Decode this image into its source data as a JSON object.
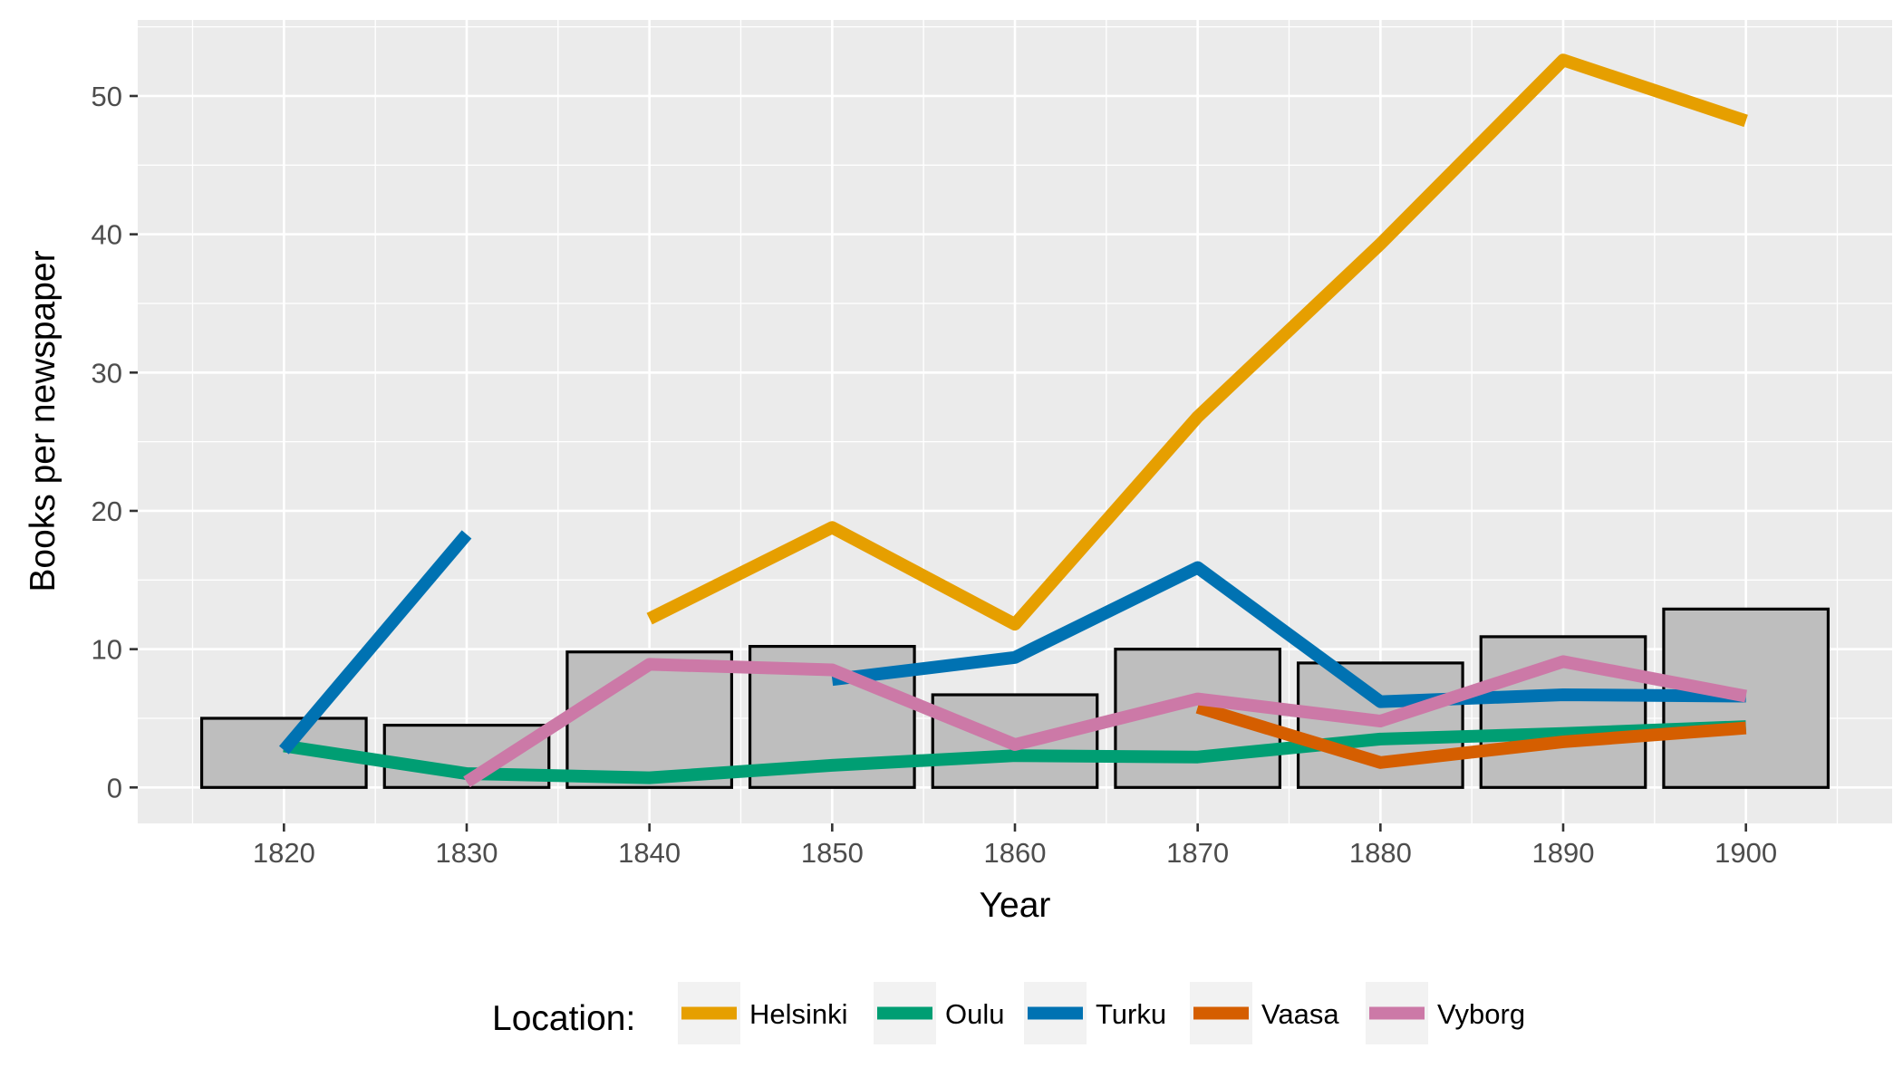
{
  "chart_data": {
    "type": "line",
    "title": "",
    "xlabel": "Year",
    "ylabel": "Books per newspaper",
    "xlim": [
      1812,
      1908
    ],
    "ylim": [
      -2.6,
      55.5
    ],
    "x_ticks": [
      "1820",
      "1830",
      "1840",
      "1850",
      "1860",
      "1870",
      "1880",
      "1890",
      "1900"
    ],
    "y_ticks": [
      "0",
      "10",
      "20",
      "30",
      "40",
      "50"
    ],
    "grid": true,
    "legend": {
      "title": "Location:",
      "position": "bottom"
    },
    "bars": {
      "x": [
        1820,
        1830,
        1840,
        1850,
        1860,
        1870,
        1880,
        1890,
        1900
      ],
      "values": [
        5.0,
        4.5,
        9.8,
        10.2,
        6.7,
        10.0,
        9.0,
        10.9,
        12.9
      ],
      "color": "#bebebe",
      "outline": "#000000"
    },
    "series": [
      {
        "name": "Helsinki",
        "color": "#E69F00",
        "x": [
          1840,
          1850,
          1860,
          1870,
          1880,
          1890,
          1900
        ],
        "values": [
          12.2,
          18.8,
          11.8,
          26.8,
          39.3,
          52.6,
          48.2
        ]
      },
      {
        "name": "Oulu",
        "color": "#009E73",
        "x": [
          1820,
          1830,
          1840,
          1850,
          1860,
          1870,
          1880,
          1890,
          1900
        ],
        "values": [
          3.0,
          1.0,
          0.7,
          1.6,
          2.3,
          2.2,
          3.5,
          3.9,
          4.4
        ]
      },
      {
        "name": "Turku",
        "color": "#0072B2",
        "x": [
          1820,
          1830
        ],
        "values": [
          2.7,
          18.3
        ]
      },
      {
        "name": "Turku",
        "color": "#0072B2",
        "x": [
          1850,
          1860,
          1870,
          1880,
          1890,
          1900
        ],
        "values": [
          7.8,
          9.4,
          15.9,
          6.2,
          6.7,
          6.6
        ]
      },
      {
        "name": "Vaasa",
        "color": "#D55E00",
        "x": [
          1870,
          1880,
          1890,
          1900
        ],
        "values": [
          5.8,
          1.8,
          3.3,
          4.3
        ]
      },
      {
        "name": "Vyborg",
        "color": "#CC79A7",
        "x": [
          1830,
          1840,
          1850,
          1860,
          1870,
          1880,
          1890,
          1900
        ],
        "values": [
          0.4,
          8.9,
          8.5,
          3.1,
          6.4,
          4.8,
          9.1,
          6.6
        ]
      }
    ],
    "legend_entries": [
      {
        "name": "Helsinki",
        "color": "#E69F00"
      },
      {
        "name": "Oulu",
        "color": "#009E73"
      },
      {
        "name": "Turku",
        "color": "#0072B2"
      },
      {
        "name": "Vaasa",
        "color": "#D55E00"
      },
      {
        "name": "Vyborg",
        "color": "#CC79A7"
      }
    ],
    "panel_background": "#EBEBEB"
  }
}
